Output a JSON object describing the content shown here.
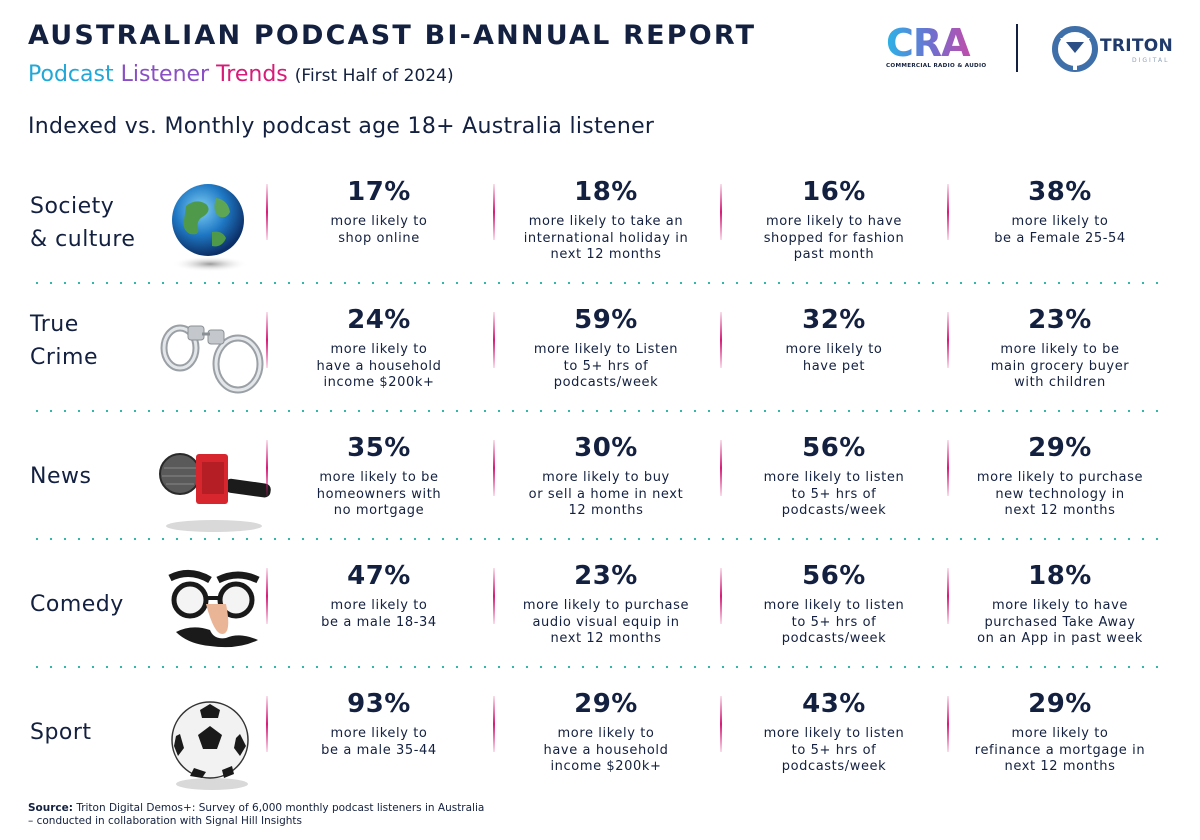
{
  "header": {
    "title": "AUSTRALIAN PODCAST BI-ANNUAL REPORT",
    "subtitle_part1": "Podcast",
    "subtitle_part2": "Listener",
    "subtitle_part3": "Trends",
    "subtitle_part4": "(First Half of 2024)",
    "index_title": "Indexed vs. Monthly podcast age 18+ Australia listener"
  },
  "logos": {
    "cra_word": "CRA",
    "cra_tagline": "COMMERCIAL RADIO & AUDIO",
    "triton_word": "TRITON",
    "triton_sub": "DIGITAL"
  },
  "rows": [
    {
      "label": "Society\n& culture",
      "icon": "globe-icon",
      "stats": [
        {
          "pct": "17%",
          "desc": "more likely to\nshop online"
        },
        {
          "pct": "18%",
          "desc": "more likely to take an\ninternational holiday in\nnext 12 months"
        },
        {
          "pct": "16%",
          "desc": "more likely to have\nshopped for fashion\npast month"
        },
        {
          "pct": "38%",
          "desc": "more likely to\nbe a Female 25-54"
        }
      ]
    },
    {
      "label": "True\nCrime",
      "icon": "handcuffs-icon",
      "stats": [
        {
          "pct": "24%",
          "desc": "more likely to\nhave a household\nincome $200k+"
        },
        {
          "pct": "59%",
          "desc": "more likely to Listen\nto 5+ hrs of\npodcasts/week"
        },
        {
          "pct": "32%",
          "desc": "more likely to\nhave pet"
        },
        {
          "pct": "23%",
          "desc": "more likely to be\nmain grocery buyer\nwith children"
        }
      ]
    },
    {
      "label": "News",
      "icon": "microphone-icon",
      "stats": [
        {
          "pct": "35%",
          "desc": "more likely to be\nhomeowners with\nno mortgage"
        },
        {
          "pct": "30%",
          "desc": "more likely to buy\nor sell a home in next\n12 months"
        },
        {
          "pct": "56%",
          "desc": "more likely to listen\nto 5+ hrs of\npodcasts/week"
        },
        {
          "pct": "29%",
          "desc": "more likely to purchase\nnew technology in\nnext 12 months"
        }
      ]
    },
    {
      "label": "Comedy",
      "icon": "disguise-glasses-icon",
      "stats": [
        {
          "pct": "47%",
          "desc": "more likely to\nbe a male 18-34"
        },
        {
          "pct": "23%",
          "desc": "more likely to purchase\naudio visual equip in\nnext 12 months"
        },
        {
          "pct": "56%",
          "desc": "more likely to listen\nto 5+ hrs of\npodcasts/week"
        },
        {
          "pct": "18%",
          "desc": "more likely to have\npurchased Take Away\non an App in past week"
        }
      ]
    },
    {
      "label": "Sport",
      "icon": "soccer-ball-icon",
      "stats": [
        {
          "pct": "93%",
          "desc": "more likely to\nbe a male 35-44"
        },
        {
          "pct": "29%",
          "desc": "more likely to\nhave a household\nincome $200k+"
        },
        {
          "pct": "43%",
          "desc": "more likely to listen\nto 5+ hrs of\npodcasts/week"
        },
        {
          "pct": "29%",
          "desc": "more likely to\nrefinance a mortgage in\nnext 12 months"
        }
      ]
    }
  ],
  "source": {
    "label": "Source:",
    "line1": "Triton Digital Demos+: Survey of 6,000 monthly podcast listeners in Australia",
    "line2": "– conducted in collaboration with Signal Hill Insights"
  },
  "colors": {
    "navy": "#13203f",
    "blue": "#21a8d8",
    "pink": "#d61b78",
    "teal": "#29b3a6"
  }
}
